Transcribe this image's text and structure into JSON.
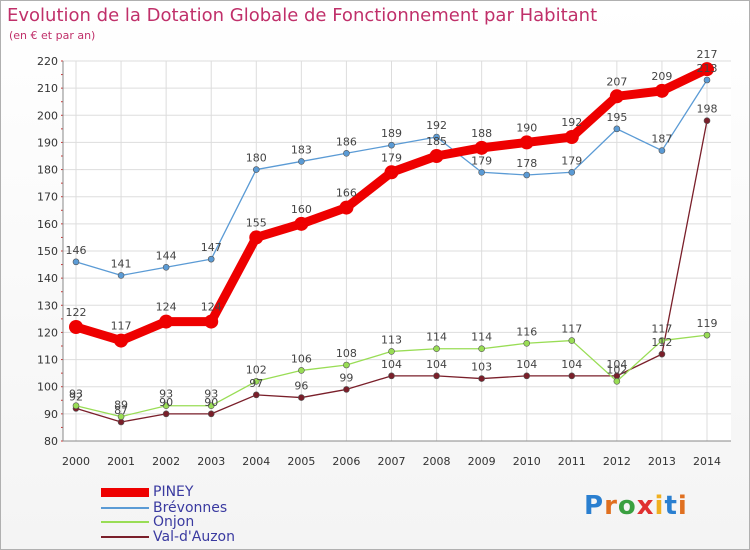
{
  "title": "Evolution de la Dotation Globale de Fonctionnement par Habitant",
  "subtitle": "(en € et par an)",
  "logo_text": "Proxiti",
  "chart_data": {
    "type": "line",
    "x": [
      "2000",
      "2001",
      "2002",
      "2003",
      "2004",
      "2005",
      "2006",
      "2007",
      "2008",
      "2009",
      "2010",
      "2011",
      "2012",
      "2013",
      "2014"
    ],
    "ylim": [
      80,
      220
    ],
    "yticks": [
      80,
      90,
      100,
      110,
      120,
      130,
      140,
      150,
      160,
      170,
      180,
      190,
      200,
      210,
      220
    ],
    "grid": true,
    "legend_position": "bottom-left",
    "series": [
      {
        "name": "PINEY",
        "color": "#ee0000",
        "values": [
          122,
          117,
          124,
          124,
          155,
          160,
          166,
          179,
          185,
          188,
          190,
          192,
          207,
          209,
          217
        ]
      },
      {
        "name": "Brévonnes",
        "color": "#5b9bd5",
        "values": [
          146,
          141,
          144,
          147,
          180,
          183,
          186,
          189,
          192,
          179,
          178,
          179,
          195,
          187,
          213
        ]
      },
      {
        "name": "Onjon",
        "color": "#99dd55",
        "values": [
          93,
          89,
          93,
          93,
          102,
          106,
          108,
          113,
          114,
          114,
          116,
          117,
          102,
          117,
          119
        ]
      },
      {
        "name": "Val-d'Auzon",
        "color": "#7a1f2a",
        "values": [
          92,
          87,
          90,
          90,
          97,
          96,
          99,
          104,
          104,
          103,
          104,
          104,
          104,
          112,
          198
        ]
      }
    ]
  }
}
